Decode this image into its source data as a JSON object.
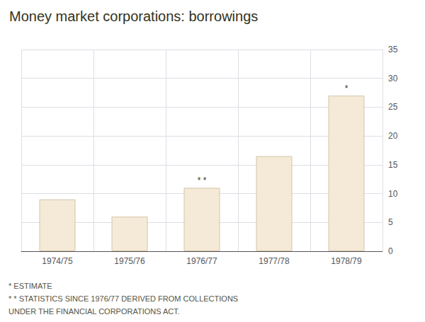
{
  "chart_data": {
    "type": "bar",
    "title": "Money market corporations: borrowings",
    "categories": [
      "1974/75",
      "1975/76",
      "1976/77",
      "1977/78",
      "1978/79"
    ],
    "values": [
      9.0,
      6.0,
      11.0,
      16.5,
      27.0
    ],
    "color": "#f5ead8",
    "ylim": [
      0,
      35
    ],
    "yticks": [
      0,
      5,
      10,
      15,
      20,
      25,
      30,
      35
    ],
    "grid": true,
    "annotations": [
      {
        "category": "1976/77",
        "text": "* *"
      },
      {
        "category": "1978/79",
        "text": "*"
      }
    ],
    "footnotes": [
      "* ESTIMATE",
      "* * STATISTICS SINCE 1976/77 DERIVED FROM COLLECTIONS",
      "UNDER THE FINANCIAL CORPORATIONS ACT."
    ]
  }
}
